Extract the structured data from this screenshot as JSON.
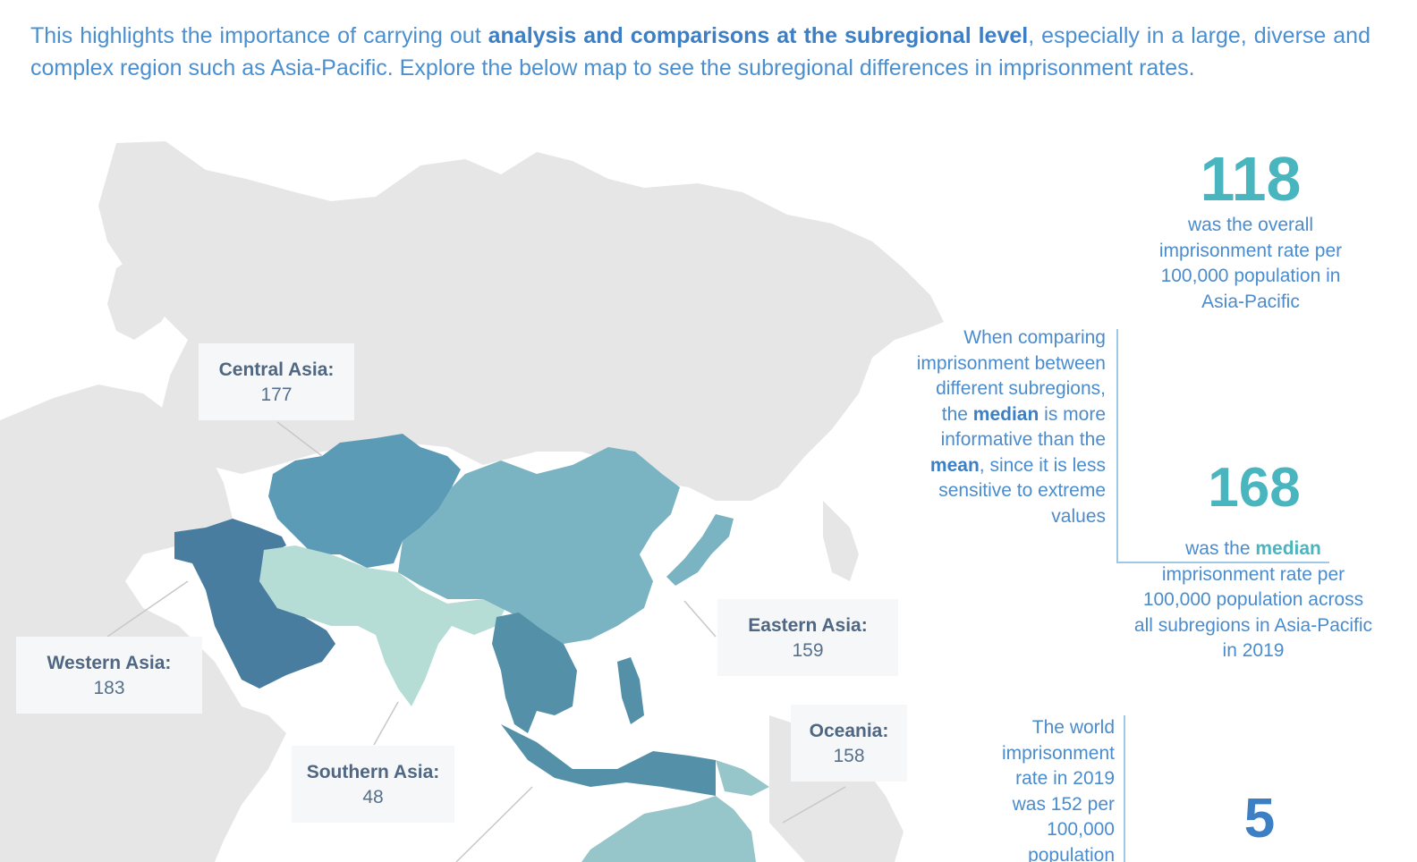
{
  "intro": {
    "part1": "This highlights the importance of carrying out ",
    "bold": "analysis and comparisons at the subregional level",
    "part2": ", especially in a large, diverse and complex region such as Asia-Pacific. Explore the below map to see the subregional differences in imprisonment rates."
  },
  "map": {
    "regions": [
      {
        "name": "Central Asia:",
        "value": "177",
        "color": "#5b9bb5"
      },
      {
        "name": "Western Asia:",
        "value": "183",
        "color": "#497d9f"
      },
      {
        "name": "Southern Asia:",
        "value": "48",
        "color": "#b5ddd5"
      },
      {
        "name": "Eastern Asia:",
        "value": "159",
        "color": "#7ab3c1"
      },
      {
        "name": "Oceania:",
        "value": "158",
        "color": "#96c6c9"
      }
    ],
    "south_eastern_asia_color": "#5590a9",
    "land_color": "#e6e6e6"
  },
  "stats": {
    "overall": {
      "number": "118",
      "text": "was the overall imprisonment rate per 100,000 population in Asia-Pacific"
    },
    "median": {
      "number": "168",
      "prefix": "was the ",
      "bold": "median",
      "suffix": " imprisonment rate per 100,000 population across all subregions in Asia-Pacific in 2019"
    },
    "third": {
      "number": "5"
    }
  },
  "notes": {
    "median_note": {
      "part1": "When comparing imprisonment between different subregions, the ",
      "bold1": "median",
      "part2": " is more informative than the ",
      "bold2": "mean",
      "part3": ", since it is less sensitive to extreme values"
    },
    "world_note": "The world imprisonment rate in 2019 was 152 per 100,000 population"
  }
}
